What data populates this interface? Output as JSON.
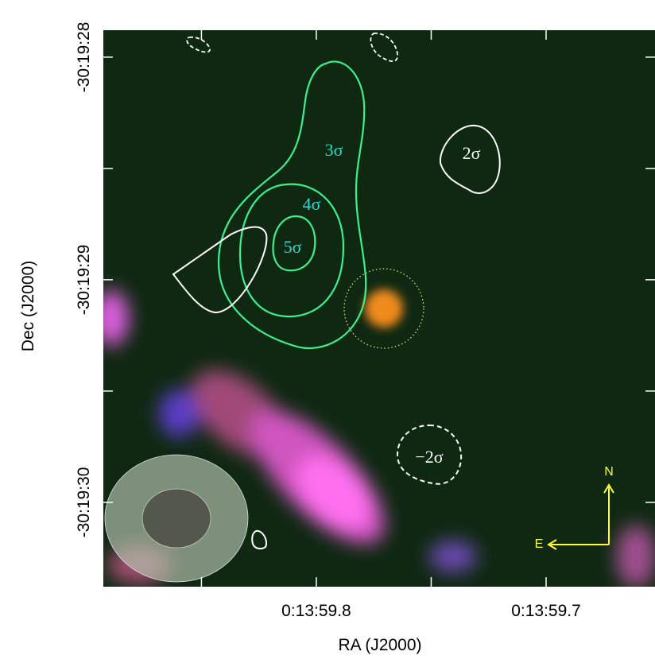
{
  "chart_data": {
    "type": "image",
    "xlabel": "RA (J2000)",
    "ylabel": "Dec (J2000)",
    "xlim": [
      59.8927,
      59.6526
    ],
    "xticks": [
      {
        "value": 59.85,
        "label": null
      },
      {
        "value": 59.8,
        "label": "0:13:59.8"
      },
      {
        "value": 59.75,
        "label": null
      },
      {
        "value": 59.7,
        "label": "0:13:59.7"
      }
    ],
    "ylim": [
      30.379,
      27.879
    ],
    "yticks": [
      {
        "value": 28,
        "label": "-30:19:28"
      },
      {
        "value": 28.5,
        "label": null
      },
      {
        "value": 29,
        "label": "-30:19:29"
      },
      {
        "value": 29.5,
        "label": null
      },
      {
        "value": 30,
        "label": "-30:19:30"
      }
    ],
    "annotations": [
      "3σ",
      "4σ",
      "5σ",
      "2σ",
      "−2σ",
      "N",
      "E"
    ]
  }
}
